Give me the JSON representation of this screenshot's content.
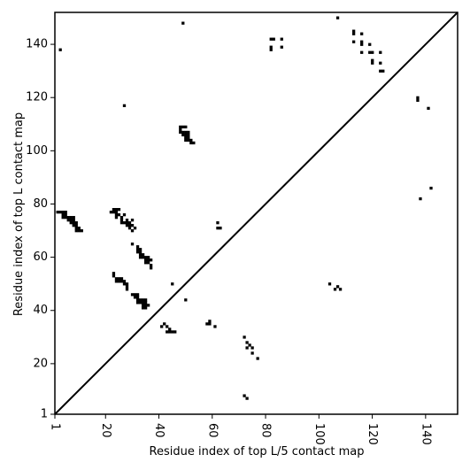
{
  "chart_data": {
    "type": "heatmap",
    "title": "",
    "xlabel": "Residue index of top L/5 contact map",
    "ylabel": "Residue index of top L contact map",
    "xlim": [
      1,
      152
    ],
    "ylim": [
      1,
      152
    ],
    "xticks": [
      1,
      20,
      40,
      60,
      80,
      100,
      120,
      140
    ],
    "yticks": [
      1,
      20,
      40,
      60,
      80,
      100,
      120,
      140
    ],
    "xtick_rotation": -90,
    "diagonal": true,
    "colors": {
      "cell": "#000000",
      "background": "#ffffff",
      "frame": "#000000"
    },
    "upper_contacts": [
      [
        49,
        148
      ],
      [
        107,
        150
      ],
      [
        3,
        138
      ],
      [
        27,
        117
      ],
      [
        82,
        142
      ],
      [
        83,
        142
      ],
      [
        86,
        142
      ],
      [
        82,
        139
      ],
      [
        82,
        138
      ],
      [
        86,
        139
      ],
      [
        113,
        145
      ],
      [
        113,
        144
      ],
      [
        116,
        144
      ],
      [
        113,
        141
      ],
      [
        116,
        141
      ],
      [
        116,
        140
      ],
      [
        119,
        140
      ],
      [
        116,
        137
      ],
      [
        119,
        137
      ],
      [
        120,
        137
      ],
      [
        123,
        137
      ],
      [
        120,
        134
      ],
      [
        120,
        133
      ],
      [
        123,
        133
      ],
      [
        123,
        130
      ],
      [
        124,
        130
      ],
      [
        137,
        120
      ],
      [
        137,
        119
      ],
      [
        141,
        116
      ],
      [
        48,
        109
      ],
      [
        49,
        109
      ],
      [
        50,
        109
      ],
      [
        48,
        108
      ],
      [
        48,
        107
      ],
      [
        49,
        107
      ],
      [
        50,
        107
      ],
      [
        51,
        107
      ],
      [
        49,
        106
      ],
      [
        50,
        106
      ],
      [
        51,
        106
      ],
      [
        50,
        105
      ],
      [
        51,
        105
      ],
      [
        50,
        104
      ],
      [
        51,
        104
      ],
      [
        52,
        104
      ],
      [
        52,
        103
      ],
      [
        53,
        103
      ],
      [
        142,
        86
      ],
      [
        138,
        82
      ],
      [
        23,
        78
      ],
      [
        24,
        78
      ],
      [
        25,
        78
      ],
      [
        24,
        77
      ],
      [
        22,
        77
      ],
      [
        23,
        77
      ],
      [
        25,
        76
      ],
      [
        24,
        76
      ],
      [
        27,
        76
      ],
      [
        24,
        75
      ],
      [
        26,
        75
      ],
      [
        28,
        74
      ],
      [
        26,
        74
      ],
      [
        30,
        74
      ],
      [
        26,
        73
      ],
      [
        27,
        73
      ],
      [
        28,
        73
      ],
      [
        29,
        73
      ],
      [
        28,
        72
      ],
      [
        29,
        72
      ],
      [
        30,
        72
      ],
      [
        29,
        71
      ],
      [
        31,
        71
      ],
      [
        30,
        70
      ],
      [
        62,
        73
      ],
      [
        62,
        71
      ],
      [
        63,
        71
      ],
      [
        30,
        65
      ],
      [
        32,
        64
      ],
      [
        32,
        63
      ],
      [
        33,
        63
      ],
      [
        32,
        62
      ],
      [
        33,
        62
      ],
      [
        34,
        61
      ],
      [
        33,
        61
      ],
      [
        35,
        60
      ],
      [
        33,
        60
      ],
      [
        34,
        60
      ],
      [
        36,
        60
      ],
      [
        35,
        59
      ],
      [
        36,
        59
      ],
      [
        37,
        59
      ],
      [
        35,
        58
      ],
      [
        36,
        58
      ],
      [
        37,
        57
      ],
      [
        37,
        56
      ],
      [
        23,
        54
      ],
      [
        23,
        53
      ],
      [
        24,
        52
      ],
      [
        25,
        52
      ],
      [
        26,
        52
      ],
      [
        24,
        51
      ],
      [
        25,
        51
      ],
      [
        26,
        51
      ],
      [
        27,
        51
      ],
      [
        27,
        50
      ],
      [
        28,
        50
      ],
      [
        28,
        49
      ],
      [
        28,
        48
      ],
      [
        45,
        50
      ],
      [
        30,
        46
      ],
      [
        31,
        46
      ],
      [
        32,
        46
      ],
      [
        31,
        45
      ],
      [
        32,
        45
      ],
      [
        32,
        44
      ],
      [
        33,
        44
      ],
      [
        34,
        44
      ],
      [
        35,
        44
      ],
      [
        32,
        43
      ],
      [
        33,
        43
      ],
      [
        34,
        43
      ],
      [
        35,
        43
      ],
      [
        34,
        42
      ],
      [
        35,
        42
      ],
      [
        36,
        42
      ],
      [
        34,
        41
      ],
      [
        35,
        41
      ],
      [
        50,
        44
      ],
      [
        104,
        50
      ],
      [
        107,
        49
      ],
      [
        106,
        48
      ],
      [
        108,
        48
      ],
      [
        42,
        35
      ],
      [
        41,
        34
      ],
      [
        43,
        34
      ],
      [
        44,
        33
      ],
      [
        43,
        32
      ],
      [
        44,
        32
      ],
      [
        45,
        32
      ],
      [
        46,
        32
      ],
      [
        58,
        35
      ],
      [
        59,
        36
      ],
      [
        59,
        35
      ],
      [
        61,
        34
      ],
      [
        72,
        30
      ],
      [
        73,
        28
      ],
      [
        73,
        26
      ],
      [
        74,
        27
      ],
      [
        75,
        26
      ],
      [
        75,
        24
      ],
      [
        77,
        22
      ],
      [
        72,
        8
      ],
      [
        73,
        7
      ]
    ],
    "lower_contacts": [
      [
        2,
        77
      ],
      [
        3,
        77
      ],
      [
        4,
        77
      ],
      [
        5,
        77
      ],
      [
        4,
        76
      ],
      [
        5,
        76
      ],
      [
        4,
        75
      ],
      [
        5,
        75
      ],
      [
        6,
        75
      ],
      [
        7,
        75
      ],
      [
        8,
        75
      ],
      [
        6,
        74
      ],
      [
        7,
        74
      ],
      [
        8,
        74
      ],
      [
        7,
        73
      ],
      [
        8,
        73
      ],
      [
        9,
        73
      ],
      [
        8,
        72
      ],
      [
        9,
        72
      ],
      [
        9,
        71
      ],
      [
        10,
        71
      ],
      [
        9,
        70
      ],
      [
        10,
        70
      ],
      [
        11,
        70
      ]
    ]
  }
}
